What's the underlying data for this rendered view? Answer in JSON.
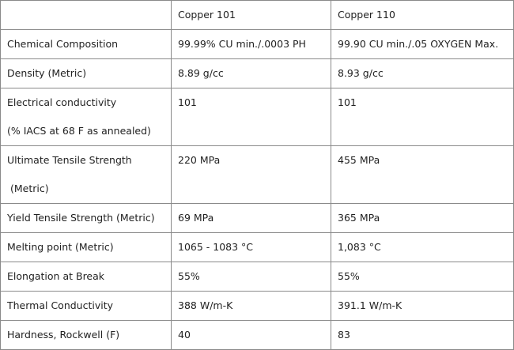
{
  "table": {
    "header": [
      "Copper 101",
      "Copper 110"
    ],
    "rows": [
      [
        [
          "Chemical Composition"
        ],
        [
          "99.99% CU min./.0003 PH"
        ],
        [
          "99.90 CU min./.05 OXYGEN Max."
        ]
      ],
      [
        [
          "Density (Metric)"
        ],
        [
          "8.89 g/cc"
        ],
        [
          "8.93 g/cc"
        ]
      ],
      [
        [
          "Electrical conductivity",
          "(% IACS at 68 F as annealed)"
        ],
        [
          "101"
        ],
        [
          "101"
        ]
      ],
      [
        [
          "Ultimate Tensile Strength",
          "(Metric)"
        ],
        [
          "220 MPa"
        ],
        [
          "455 MPa"
        ]
      ],
      [
        [
          "Yield Tensile Strength (Metric)"
        ],
        [
          "69 MPa"
        ],
        [
          "365 MPa"
        ]
      ],
      [
        [
          "Melting point (Metric)"
        ],
        [
          "1065 - 1083 °C"
        ],
        [
          "1,083 °C"
        ]
      ],
      [
        [
          "Elongation at Break"
        ],
        [
          "55%"
        ],
        [
          "55%"
        ]
      ],
      [
        [
          "Thermal Conductivity"
        ],
        [
          "388 W/m-K"
        ],
        [
          "391.1 W/m-K"
        ]
      ],
      [
        [
          "Hardness, Rockwell (F)"
        ],
        [
          "40"
        ],
        [
          "83"
        ]
      ]
    ]
  }
}
